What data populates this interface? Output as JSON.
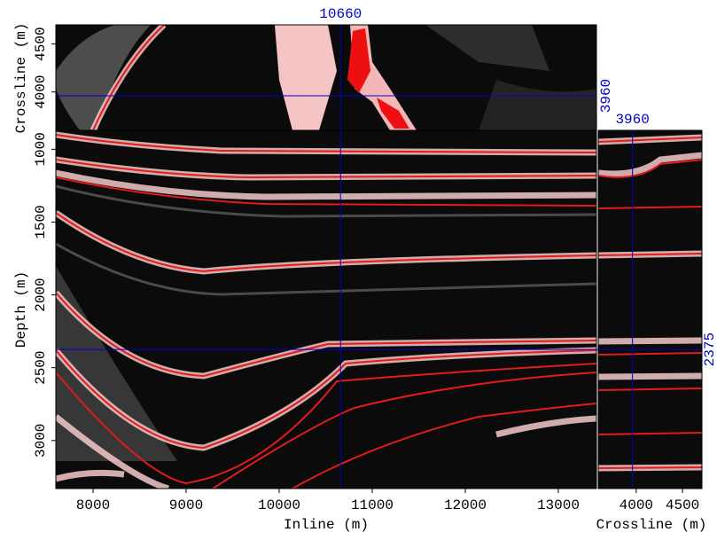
{
  "chart_data": [
    {
      "type": "image",
      "xlabel": "Inline (m)",
      "ylabel": "Depth (m)",
      "xlim": [
        7600,
        13410
      ],
      "xticks": [
        8000,
        9000,
        10000,
        11000,
        12000,
        13000
      ],
      "ylim": [
        870,
        3330
      ],
      "yticks": [
        1000,
        1500,
        2000,
        2500,
        3000
      ],
      "y_inverted": true,
      "crosshair": {
        "inline": 10660,
        "crossline": 3960,
        "depth": 2375
      },
      "crosshair_color": "#0000cc"
    },
    {
      "type": "image",
      "ylabel": "Crossline (m)",
      "ylim": [
        3600,
        4700
      ],
      "yticks": [
        4000,
        4500
      ]
    },
    {
      "type": "image",
      "xlabel": "Crossline (m)",
      "xlim": [
        3590,
        4710
      ],
      "xticks": [
        4000,
        4500
      ]
    }
  ]
}
